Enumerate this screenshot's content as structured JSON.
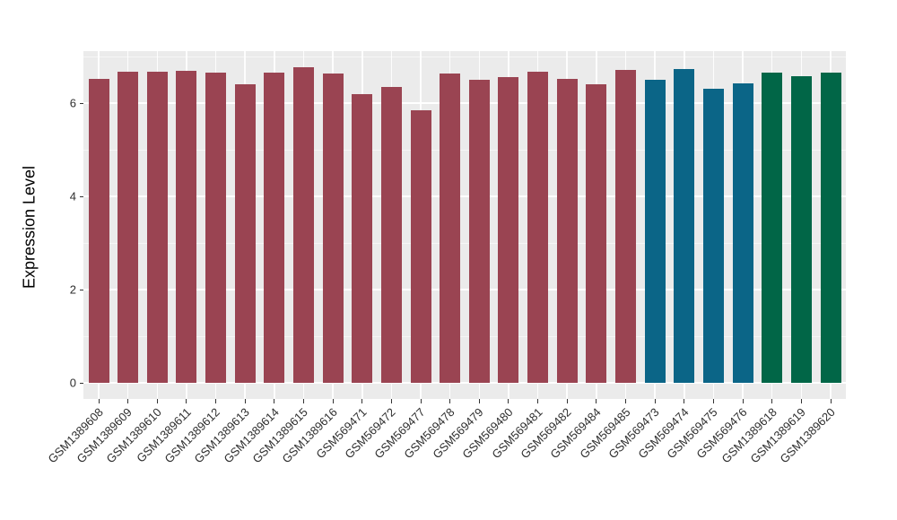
{
  "chart_data": {
    "type": "bar",
    "title": "",
    "xlabel": "",
    "ylabel": "Expression Level",
    "categories": [
      "GSM1389608",
      "GSM1389609",
      "GSM1389610",
      "GSM1389611",
      "GSM1389612",
      "GSM1389613",
      "GSM1389614",
      "GSM1389615",
      "GSM1389616",
      "GSM569471",
      "GSM569472",
      "GSM569477",
      "GSM569478",
      "GSM569479",
      "GSM569480",
      "GSM569481",
      "GSM569482",
      "GSM569484",
      "GSM569485",
      "GSM569473",
      "GSM569474",
      "GSM569475",
      "GSM569476",
      "GSM1389618",
      "GSM1389619",
      "GSM1389620"
    ],
    "values": [
      6.52,
      6.68,
      6.68,
      6.7,
      6.66,
      6.41,
      6.66,
      6.78,
      6.64,
      6.19,
      6.36,
      5.86,
      6.63,
      6.5,
      6.56,
      6.67,
      6.52,
      6.4,
      6.71,
      6.5,
      6.74,
      6.31,
      6.43,
      6.66,
      6.59,
      6.66
    ],
    "bar_colors": [
      "#9A4452",
      "#9A4452",
      "#9A4452",
      "#9A4452",
      "#9A4452",
      "#9A4452",
      "#9A4452",
      "#9A4452",
      "#9A4452",
      "#9A4452",
      "#9A4452",
      "#9A4452",
      "#9A4452",
      "#9A4452",
      "#9A4452",
      "#9A4452",
      "#9A4452",
      "#9A4452",
      "#9A4452",
      "#0B6587",
      "#0B6587",
      "#0B6587",
      "#0B6587",
      "#016647",
      "#016647",
      "#016647"
    ],
    "color_groups": {
      "maroon": "#9A4452",
      "teal": "#0B6587",
      "green": "#016647"
    },
    "yticks": [
      0,
      2,
      4,
      6
    ],
    "y_minor_ticks": [
      1,
      3,
      5,
      7
    ],
    "ylim": [
      -0.34,
      7.12
    ],
    "grid": "on",
    "panel_background": "#EBEBEB",
    "gridline_color": "#FFFFFF",
    "legend": "none"
  }
}
